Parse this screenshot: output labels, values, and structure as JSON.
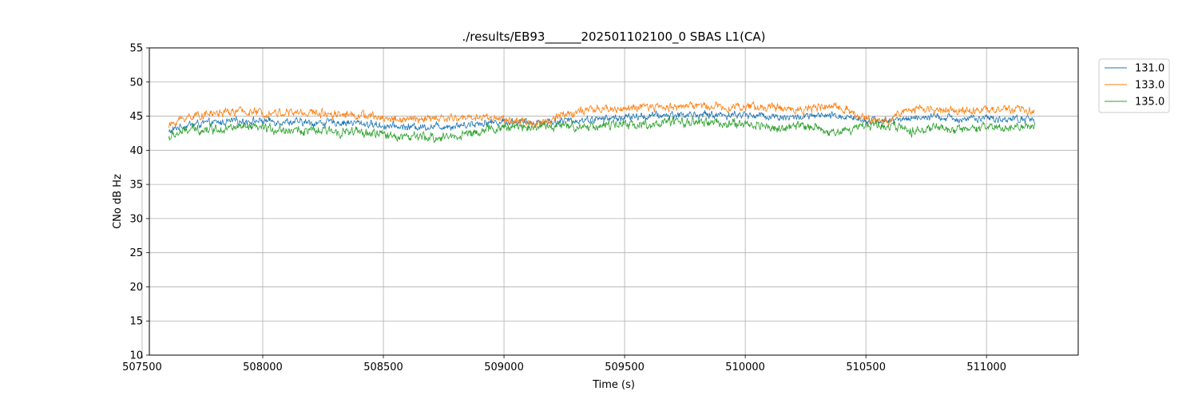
{
  "chart_data": {
    "type": "line",
    "title": "./results/EB93______202501102100_0 SBAS L1(CA)",
    "xlabel": "Time (s)",
    "ylabel": "CNo dB Hz",
    "xlim": [
      507530,
      511380
    ],
    "ylim": [
      10,
      55
    ],
    "xticks": [
      507500,
      508000,
      508500,
      509000,
      509500,
      510000,
      510500,
      511000
    ],
    "yticks": [
      10,
      15,
      20,
      25,
      30,
      35,
      40,
      45,
      50,
      55
    ],
    "grid": true,
    "legend_position": "top-right outside",
    "x_range": [
      507610,
      511200
    ],
    "series": [
      {
        "name": "131.0",
        "color": "#1f77b4",
        "noise": 0.45,
        "points": [
          [
            507610,
            42.6
          ],
          [
            507650,
            43.4
          ],
          [
            507700,
            43.8
          ],
          [
            507800,
            44.0
          ],
          [
            507900,
            44.3
          ],
          [
            508000,
            44.3
          ],
          [
            508100,
            44.2
          ],
          [
            508200,
            44.0
          ],
          [
            508300,
            44.1
          ],
          [
            508400,
            44.0
          ],
          [
            508500,
            43.6
          ],
          [
            508600,
            43.4
          ],
          [
            508700,
            43.5
          ],
          [
            508800,
            43.6
          ],
          [
            508900,
            44.0
          ],
          [
            509000,
            44.2
          ],
          [
            509100,
            44.1
          ],
          [
            509200,
            44.2
          ],
          [
            509300,
            44.4
          ],
          [
            509400,
            44.6
          ],
          [
            509500,
            44.8
          ],
          [
            509600,
            45.0
          ],
          [
            509700,
            45.2
          ],
          [
            509800,
            45.2
          ],
          [
            509900,
            45.2
          ],
          [
            510000,
            45.2
          ],
          [
            510100,
            45.0
          ],
          [
            510200,
            44.8
          ],
          [
            510300,
            45.0
          ],
          [
            510400,
            45.0
          ],
          [
            510500,
            44.5
          ],
          [
            510600,
            44.3
          ],
          [
            510700,
            44.8
          ],
          [
            510800,
            44.8
          ],
          [
            510900,
            44.6
          ],
          [
            511000,
            44.6
          ],
          [
            511100,
            44.6
          ],
          [
            511200,
            44.5
          ]
        ]
      },
      {
        "name": "133.0",
        "color": "#ff7f0e",
        "noise": 0.5,
        "points": [
          [
            507610,
            43.5
          ],
          [
            507650,
            44.4
          ],
          [
            507700,
            45.0
          ],
          [
            507800,
            45.4
          ],
          [
            507900,
            45.7
          ],
          [
            508000,
            45.5
          ],
          [
            508100,
            45.5
          ],
          [
            508200,
            45.5
          ],
          [
            508300,
            45.4
          ],
          [
            508400,
            45.2
          ],
          [
            508500,
            44.7
          ],
          [
            508600,
            44.5
          ],
          [
            508700,
            44.6
          ],
          [
            508800,
            44.7
          ],
          [
            508900,
            44.9
          ],
          [
            508980,
            44.7
          ],
          [
            509050,
            44.1
          ],
          [
            509150,
            44.0
          ],
          [
            509250,
            45.3
          ],
          [
            509300,
            45.6
          ],
          [
            509400,
            46.0
          ],
          [
            509500,
            46.1
          ],
          [
            509600,
            46.3
          ],
          [
            509700,
            46.4
          ],
          [
            509800,
            46.6
          ],
          [
            509900,
            46.4
          ],
          [
            510000,
            46.4
          ],
          [
            510100,
            46.3
          ],
          [
            510200,
            46.0
          ],
          [
            510300,
            46.2
          ],
          [
            510400,
            46.4
          ],
          [
            510500,
            44.5
          ],
          [
            510600,
            44.3
          ],
          [
            510650,
            45.8
          ],
          [
            510700,
            46.0
          ],
          [
            510800,
            45.9
          ],
          [
            510900,
            45.9
          ],
          [
            511000,
            45.9
          ],
          [
            511100,
            46.0
          ],
          [
            511200,
            45.6
          ]
        ]
      },
      {
        "name": "135.0",
        "color": "#2ca02c",
        "noise": 0.55,
        "points": [
          [
            507610,
            41.8
          ],
          [
            507650,
            42.5
          ],
          [
            507700,
            43.0
          ],
          [
            507800,
            43.2
          ],
          [
            507900,
            43.3
          ],
          [
            508000,
            43.2
          ],
          [
            508100,
            43.0
          ],
          [
            508200,
            42.8
          ],
          [
            508300,
            42.8
          ],
          [
            508400,
            42.6
          ],
          [
            508500,
            42.3
          ],
          [
            508600,
            42.0
          ],
          [
            508700,
            41.8
          ],
          [
            508800,
            42.1
          ],
          [
            508900,
            42.8
          ],
          [
            509000,
            43.3
          ],
          [
            509100,
            43.5
          ],
          [
            509200,
            43.5
          ],
          [
            509300,
            43.5
          ],
          [
            509400,
            43.6
          ],
          [
            509500,
            43.8
          ],
          [
            509600,
            43.8
          ],
          [
            509700,
            44.1
          ],
          [
            509800,
            44.1
          ],
          [
            509900,
            44.0
          ],
          [
            510000,
            43.8
          ],
          [
            510100,
            43.5
          ],
          [
            510150,
            43.0
          ],
          [
            510200,
            43.5
          ],
          [
            510300,
            43.5
          ],
          [
            510350,
            42.5
          ],
          [
            510400,
            42.8
          ],
          [
            510500,
            43.8
          ],
          [
            510600,
            43.6
          ],
          [
            510700,
            42.8
          ],
          [
            510800,
            43.3
          ],
          [
            510900,
            42.8
          ],
          [
            511000,
            43.3
          ],
          [
            511100,
            43.3
          ],
          [
            511200,
            43.5
          ]
        ]
      }
    ]
  }
}
